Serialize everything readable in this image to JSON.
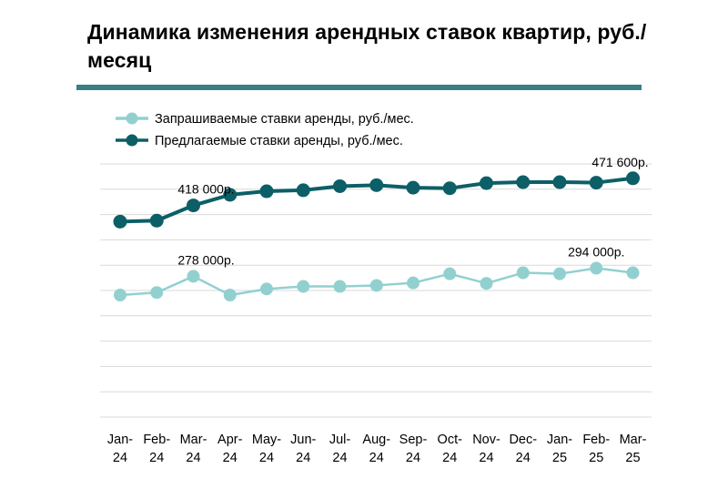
{
  "title": "Динамика изменения арендных ставок квартир, руб./месяц",
  "colors": {
    "rule": "#3a7f83",
    "series_requested": "#92d0d0",
    "series_offered": "#0c5f67",
    "grid": "#d9d9d9"
  },
  "chart_data": {
    "type": "line",
    "categories": [
      "Jan-24",
      "Feb-24",
      "Mar-24",
      "Apr-24",
      "May-24",
      "Jun-24",
      "Jul-24",
      "Aug-24",
      "Sep-24",
      "Oct-24",
      "Nov-24",
      "Dec-24",
      "Jan-25",
      "Feb-25",
      "Mar-25"
    ],
    "category_lines": [
      [
        "Jan-",
        "24"
      ],
      [
        "Feb-",
        "24"
      ],
      [
        "Mar-",
        "24"
      ],
      [
        "Apr-",
        "24"
      ],
      [
        "May-",
        "24"
      ],
      [
        "Jun-",
        "24"
      ],
      [
        "Jul-",
        "24"
      ],
      [
        "Aug-",
        "24"
      ],
      [
        "Sep-",
        "24"
      ],
      [
        "Oct-",
        "24"
      ],
      [
        "Nov-",
        "24"
      ],
      [
        "Dec-",
        "24"
      ],
      [
        "Jan-",
        "25"
      ],
      [
        "Feb-",
        "25"
      ],
      [
        "Mar-",
        "25"
      ]
    ],
    "ylim": [
      0,
      500000
    ],
    "gridlines": 11,
    "grid": true,
    "legend_position": "top-left",
    "series": [
      {
        "name": "Запрашиваемые ставки аренды, руб./мес.",
        "color_key": "series_requested",
        "values": [
          241000,
          246000,
          278000,
          241000,
          253000,
          258000,
          258000,
          260000,
          265000,
          283000,
          264000,
          285000,
          283000,
          294000,
          285000
        ],
        "labels": [
          {
            "index": 2,
            "text": "278 000р."
          },
          {
            "index": 13,
            "text": "294 000р."
          }
        ]
      },
      {
        "name": "Предлагаемые ставки аренды, руб./мес.",
        "color_key": "series_offered",
        "values": [
          386000,
          388000,
          418000,
          439000,
          446000,
          448000,
          456000,
          458000,
          453000,
          452000,
          462000,
          464000,
          464000,
          463000,
          471600
        ],
        "labels": [
          {
            "index": 2,
            "text": "418 000р."
          },
          {
            "index": 14,
            "text": "471 600р."
          }
        ]
      }
    ]
  }
}
